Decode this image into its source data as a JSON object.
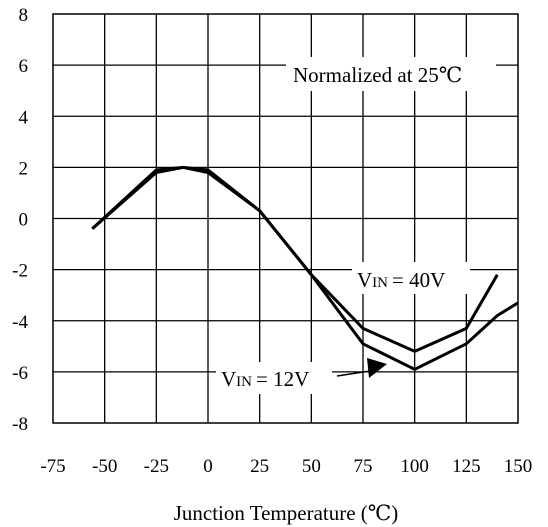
{
  "chart_data": {
    "type": "line",
    "title": "",
    "xlabel": "Junction Temperature (℃)",
    "ylabel": "",
    "xlim": [
      -75,
      150
    ],
    "ylim": [
      -8,
      8
    ],
    "x_ticks": [
      -75,
      -50,
      -25,
      0,
      25,
      50,
      75,
      100,
      125,
      150
    ],
    "y_ticks": [
      8,
      6,
      4,
      2,
      0,
      -2,
      -4,
      -6,
      -8
    ],
    "grid": true,
    "series": [
      {
        "name": "VIN = 40V",
        "x": [
          -56,
          -25,
          -12,
          0,
          25,
          50,
          75,
          100,
          125,
          140
        ],
        "y": [
          -0.4,
          1.8,
          2.0,
          1.8,
          0.3,
          -2.2,
          -4.3,
          -5.2,
          -4.3,
          -2.2
        ]
      },
      {
        "name": "VIN = 12V",
        "x": [
          -56,
          -25,
          -12,
          0,
          25,
          50,
          75,
          100,
          125,
          140,
          150
        ],
        "y": [
          -0.4,
          1.9,
          2.0,
          1.9,
          0.3,
          -2.2,
          -4.9,
          -5.9,
          -4.9,
          -3.8,
          -3.3
        ]
      }
    ],
    "annotations": {
      "normalized_note": "Normalized at 25℃",
      "label_40v_prefix": "V",
      "label_40v_sub": "IN",
      "label_40v_rest": "= 40V",
      "label_12v_prefix": "V",
      "label_12v_sub": "IN",
      "label_12v_rest": "= 12V"
    }
  }
}
